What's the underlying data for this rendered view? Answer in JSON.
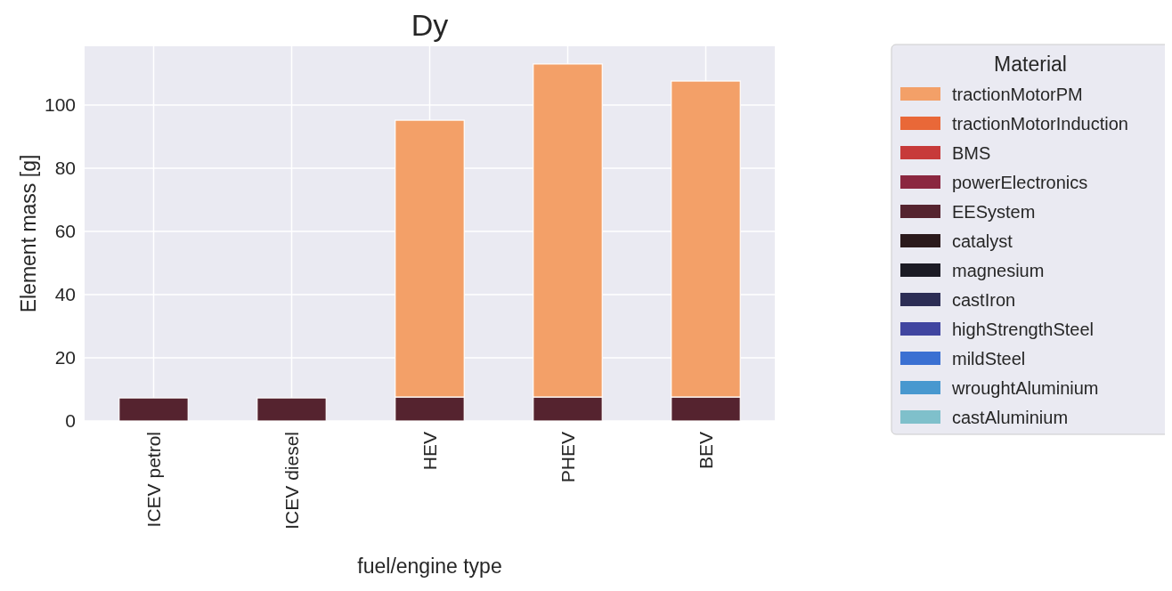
{
  "chart_data": {
    "type": "bar",
    "title": "Dy",
    "xlabel": "fuel/engine type",
    "ylabel": "Element mass [g]",
    "legend_title": "Material",
    "categories": [
      "ICEV petrol",
      "ICEV diesel",
      "HEV",
      "PHEV",
      "BEV"
    ],
    "stacked": true,
    "ylim": [
      0,
      118.6
    ],
    "yticks": [
      0,
      20,
      40,
      60,
      80,
      100
    ],
    "grid": true,
    "legend": "right",
    "series": [
      {
        "name": "castAluminium",
        "color": "#7fc0cb",
        "values": [
          0,
          0,
          0,
          0,
          0
        ]
      },
      {
        "name": "wroughtAluminium",
        "color": "#4898cf",
        "values": [
          0,
          0,
          0,
          0,
          0
        ]
      },
      {
        "name": "mildSteel",
        "color": "#3a70d2",
        "values": [
          0,
          0,
          0,
          0,
          0
        ]
      },
      {
        "name": "highStrengthSteel",
        "color": "#4045a0",
        "values": [
          0,
          0,
          0,
          0,
          0
        ]
      },
      {
        "name": "castIron",
        "color": "#2c2d55",
        "values": [
          0,
          0,
          0,
          0,
          0
        ]
      },
      {
        "name": "magnesium",
        "color": "#1c1b25",
        "values": [
          0,
          0,
          0,
          0,
          0
        ]
      },
      {
        "name": "catalyst",
        "color": "#2b1a1c",
        "values": [
          0,
          0,
          0,
          0,
          0
        ]
      },
      {
        "name": "EESystem",
        "color": "#55232f",
        "values": [
          7.3,
          7.3,
          7.6,
          7.6,
          7.6
        ]
      },
      {
        "name": "powerElectronics",
        "color": "#8b2740",
        "values": [
          0,
          0,
          0,
          0,
          0
        ]
      },
      {
        "name": "BMS",
        "color": "#c73a3a",
        "values": [
          0,
          0,
          0,
          0,
          0
        ]
      },
      {
        "name": "tractionMotorInduction",
        "color": "#e96838",
        "values": [
          0,
          0,
          0,
          0,
          0
        ]
      },
      {
        "name": "tractionMotorPM",
        "color": "#f3a068",
        "values": [
          0,
          0,
          87.6,
          105.4,
          100
        ]
      }
    ]
  }
}
